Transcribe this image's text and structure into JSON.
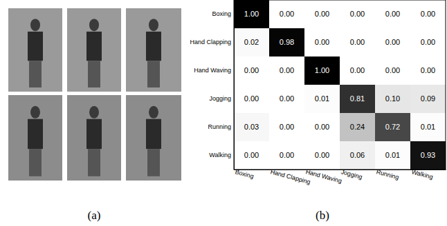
{
  "chart_data": {
    "type": "heatmap",
    "x_categories": [
      "Boxing",
      "Hand Clapping",
      "Hand Waving",
      "Jogging",
      "Running",
      "Walking"
    ],
    "y_categories": [
      "Boxing",
      "Hand Clapping",
      "Hand Waving",
      "Jogging",
      "Running",
      "Walking"
    ],
    "cells": [
      [
        1.0,
        0.0,
        0.0,
        0.0,
        0.0,
        0.0
      ],
      [
        0.02,
        0.98,
        0.0,
        0.0,
        0.0,
        0.0
      ],
      [
        0.0,
        0.0,
        1.0,
        0.0,
        0.0,
        0.0
      ],
      [
        0.0,
        0.0,
        0.01,
        0.81,
        0.1,
        0.09
      ],
      [
        0.03,
        0.0,
        0.0,
        0.24,
        0.72,
        0.01
      ],
      [
        0.0,
        0.0,
        0.0,
        0.06,
        0.01,
        0.93
      ]
    ],
    "value_labels": [
      [
        "1.00",
        "0.00",
        "0.00",
        "0.00",
        "0.00",
        "0.00"
      ],
      [
        "0.02",
        "0.98",
        "0.00",
        "0.00",
        "0.00",
        "0.00"
      ],
      [
        "0.00",
        "0.00",
        "1.00",
        "0.00",
        "0.00",
        "0.00"
      ],
      [
        "0.00",
        "0.00",
        "0.01",
        "0.81",
        "0.10",
        "0.09"
      ],
      [
        "0.03",
        "0.00",
        "0.00",
        "0.24",
        "0.72",
        "0.01"
      ],
      [
        "0.00",
        "0.00",
        "0.00",
        "0.06",
        "0.01",
        "0.93"
      ]
    ],
    "data_labels": true,
    "annotations": [
      "(a)",
      "(b)"
    ]
  }
}
